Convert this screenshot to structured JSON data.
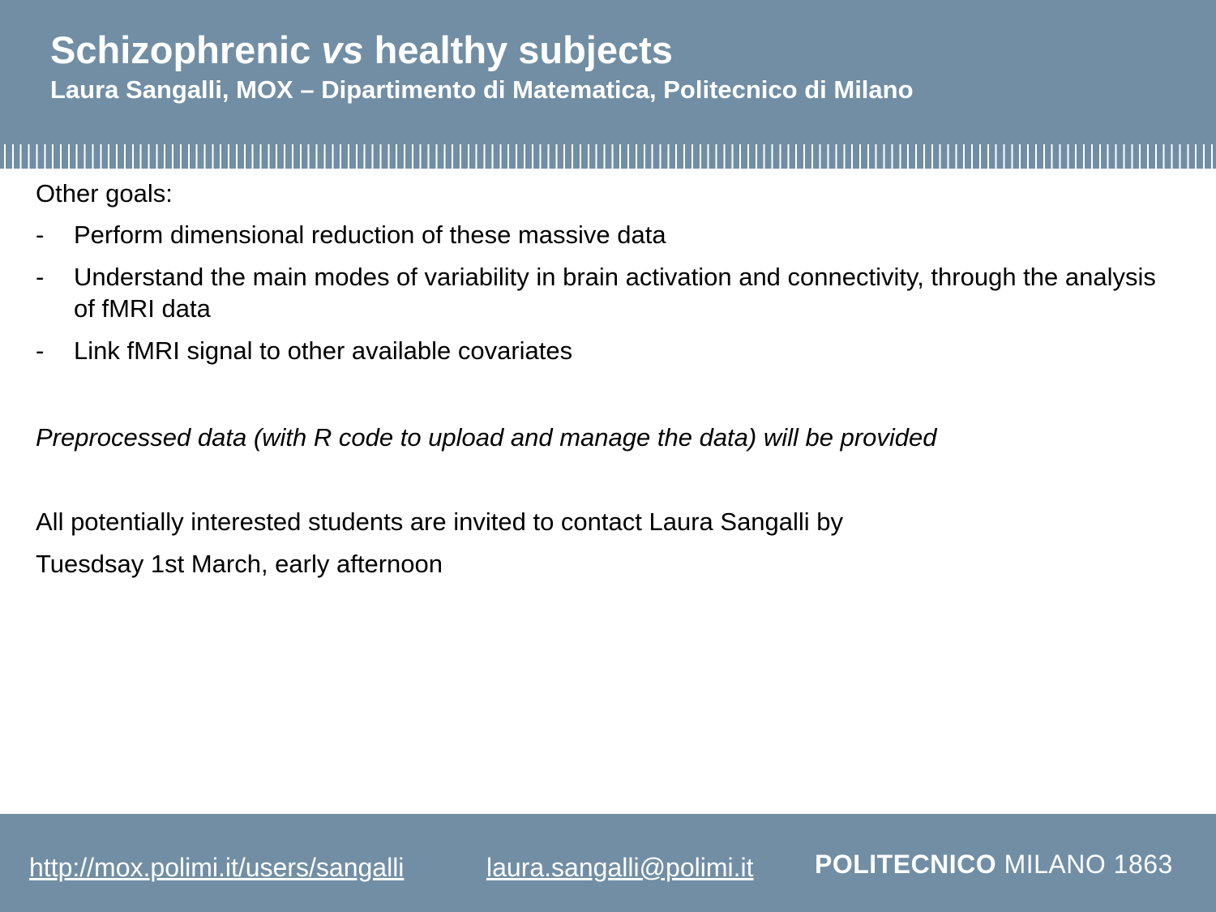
{
  "header": {
    "title_part1": "Schizophrenic ",
    "title_italic": "vs",
    "title_part2": " healthy subjects",
    "subtitle": "Laura Sangalli, MOX – Dipartimento di Matematica, Politecnico di Milano"
  },
  "body": {
    "goals_heading": "Other goals:",
    "bullet_marker": "-",
    "goals": [
      "Perform dimensional reduction of these massive data",
      "Understand the main modes of variability in brain activation and connectivity, through the analysis of fMRI data",
      "Link fMRI signal to other available covariates"
    ],
    "provided_note": "Preprocessed data (with R code to upload and manage the data) will be provided",
    "contact_line1": "All potentially interested students are invited to contact Laura Sangalli by",
    "contact_line2": "Tuesdsay 1st March, early afternoon"
  },
  "footer": {
    "website": "http://mox.polimi.it/users/sangalli",
    "email": "laura.sangalli@polimi.it",
    "logo_bold": "POLITECNICO",
    "logo_rest": " MILANO 1863"
  },
  "colors": {
    "header_bg": "#718ea4",
    "text_on_header": "#ffffff",
    "body_text": "#000000"
  }
}
